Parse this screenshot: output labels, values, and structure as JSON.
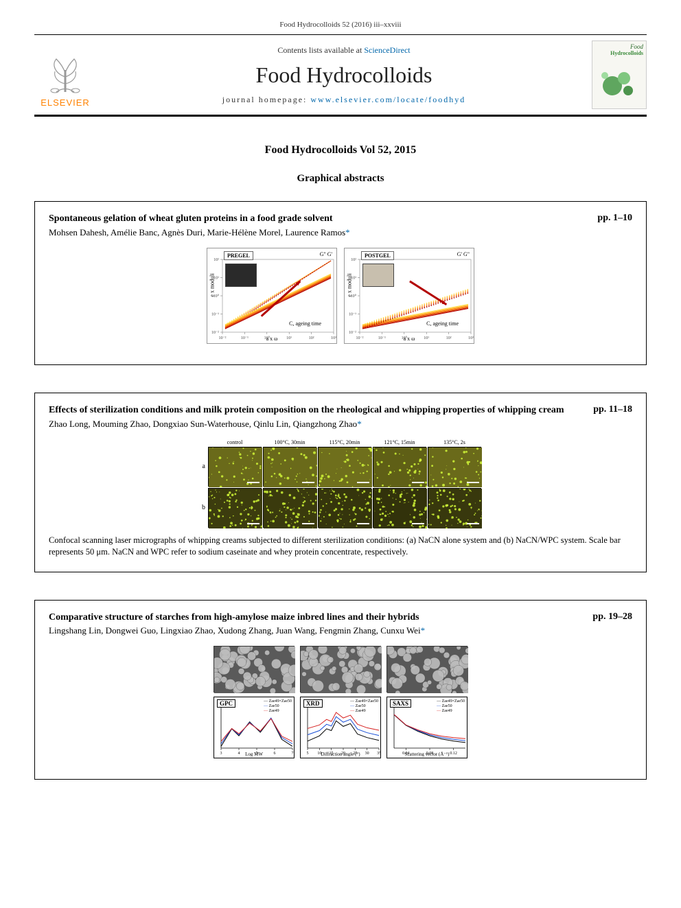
{
  "running_head": "Food Hydrocolloids 52 (2016) iii–xxviii",
  "masthead": {
    "publisher_name": "ELSEVIER",
    "publisher_color": "#ff8200",
    "contents_prefix": "Contents lists available at ",
    "contents_link_text": "ScienceDirect",
    "journal_title": "Food Hydrocolloids",
    "homepage_prefix": "journal homepage: ",
    "homepage_link_text": "www.elsevier.com/locate/foodhyd",
    "cover": {
      "line1": "Food",
      "line2": "Hydrocolloids"
    }
  },
  "page_heading": "Food Hydrocolloids Vol 52, 2015",
  "page_subheading": "Graphical abstracts",
  "link_color": "#0066aa",
  "abstracts": [
    {
      "title": "Spontaneous gelation of wheat gluten proteins in a food grade solvent",
      "authors": "Mohsen Dahesh, Amélie Banc, Agnès Duri, Marie-Hélène Morel, Laurence Ramos",
      "pages": "pp. 1–10",
      "graphic": {
        "type": "rheology-pair",
        "panels": [
          {
            "corner": "PREGEL",
            "ylab": "e x moduli",
            "xlab": "a x ω",
            "legend": "G\"  G'",
            "annot": "C, ageing time",
            "xticks": [
              "10⁻²",
              "10⁻¹",
              "10⁰",
              "10¹",
              "10²",
              "10³"
            ],
            "yticks": [
              "10⁻²",
              "10⁻¹",
              "10⁰",
              "10¹",
              "10²"
            ],
            "inset_bg": "#2a2a2a",
            "curves": [
              {
                "kind": "G'",
                "color_gradient": [
                  "#ffe24d",
                  "#ff7a00",
                  "#b30000"
                ],
                "dash": "dot",
                "slope": 1.9
              },
              {
                "kind": "G\"",
                "color_gradient": [
                  "#ffe24d",
                  "#ff7a00",
                  "#b30000"
                ],
                "dash": "solid",
                "slope": 1.0
              }
            ],
            "arrow": {
              "from": [
                0.35,
                0.78
              ],
              "to": [
                0.7,
                0.3
              ],
              "color": "#b30000"
            }
          },
          {
            "corner": "POSTGEL",
            "ylab": "e x moduli",
            "xlab": "a x ω",
            "legend": "G'  G\"",
            "annot": "C, ageing time",
            "xticks": [
              "10⁻²",
              "10⁻¹",
              "10⁰",
              "10¹",
              "10²",
              "10³"
            ],
            "yticks": [
              "10⁻²",
              "10⁻¹",
              "10⁰",
              "10¹",
              "10²"
            ],
            "inset_bg": "#c8bfae",
            "curves": [
              {
                "kind": "G'",
                "color_gradient": [
                  "#ffe24d",
                  "#ff7a00",
                  "#b30000"
                ],
                "dash": "solid",
                "slope": 0.4
              },
              {
                "kind": "G\"",
                "color_gradient": [
                  "#ffe24d",
                  "#ff7a00",
                  "#b30000"
                ],
                "dash": "dot",
                "slope": 0.7
              }
            ],
            "arrow": {
              "from": [
                0.45,
                0.3
              ],
              "to": [
                0.78,
                0.62
              ],
              "color": "#b30000"
            }
          }
        ]
      }
    },
    {
      "title": "Effects of sterilization conditions and milk protein composition on the rheological and whipping properties of whipping cream",
      "authors": "Zhao Long, Mouming Zhao, Dongxiao Sun-Waterhouse, Qinlu Lin, Qiangzhong Zhao",
      "pages": "pp. 11–18",
      "graphic": {
        "type": "micrograph-grid",
        "col_labels": [
          "control",
          "100°C, 30min",
          "115°C, 20min",
          "121°C, 15min",
          "135°C, 2s"
        ],
        "row_labels": [
          "a",
          "b"
        ],
        "cell_colors_row_a": [
          "#6a6a1a",
          "#6a6a1a",
          "#6f6f1c",
          "#5f5f16",
          "#6a6a1a"
        ],
        "cell_colors_row_b": [
          "#3c3c0e",
          "#3a3a0d",
          "#35350c",
          "#32320b",
          "#38380d"
        ],
        "speck_color": "#d7ff3a"
      },
      "caption": "Confocal scanning laser micrographs of whipping creams subjected to different sterilization conditions: (a) NaCN alone system and (b) NaCN/WPC system. Scale bar represents 50 μm. NaCN and WPC refer to sodium caseinate and whey protein concentrate, respectively."
    },
    {
      "title": "Comparative structure of starches from high-amylose maize inbred lines and their hybrids",
      "authors": "Lingshang Lin, Dongwei Guo, Lingxiao Zhao, Xudong Zhang, Juan Wang, Fengmin Zhang, Cunxu Wei",
      "pages": "pp. 19–28",
      "graphic": {
        "type": "starch-composite",
        "sem_colors": [
          "#5a5a5a",
          "#5f5f5f",
          "#585858"
        ],
        "spectra": [
          {
            "label": "GPC",
            "xlab": "Log MW",
            "xticks": [
              "3",
              "4",
              "5",
              "6",
              "7"
            ],
            "legend": [
              "Zae49×Zae50",
              "Zae50",
              "Zae49"
            ],
            "series_colors": [
              "#000000",
              "#1a4fd6",
              "#d62020"
            ],
            "series": [
              [
                [
                  3,
                  0.05
                ],
                [
                  3.6,
                  0.55
                ],
                [
                  4.0,
                  0.35
                ],
                [
                  4.6,
                  0.75
                ],
                [
                  5.2,
                  0.45
                ],
                [
                  5.8,
                  0.85
                ],
                [
                  6.4,
                  0.25
                ],
                [
                  7,
                  0.05
                ]
              ],
              [
                [
                  3,
                  0.04
                ],
                [
                  3.6,
                  0.48
                ],
                [
                  4.0,
                  0.3
                ],
                [
                  4.6,
                  0.65
                ],
                [
                  5.2,
                  0.4
                ],
                [
                  5.8,
                  0.78
                ],
                [
                  6.4,
                  0.22
                ],
                [
                  7,
                  0.04
                ]
              ],
              [
                [
                  3,
                  0.03
                ],
                [
                  3.6,
                  0.4
                ],
                [
                  4.0,
                  0.25
                ],
                [
                  4.6,
                  0.55
                ],
                [
                  5.2,
                  0.33
                ],
                [
                  5.8,
                  0.68
                ],
                [
                  6.4,
                  0.18
                ],
                [
                  7,
                  0.03
                ]
              ]
            ]
          },
          {
            "label": "XRD",
            "xlab": "Diffraction angle (°)",
            "xticks": [
              "5",
              "10",
              "15",
              "20",
              "25",
              "30",
              "35"
            ],
            "legend": [
              "Zae49×Zae50",
              "Zae50",
              "Zae49"
            ],
            "series_colors": [
              "#000000",
              "#1a4fd6",
              "#d62020"
            ],
            "series": [
              [
                [
                  5,
                  0.2
                ],
                [
                  10,
                  0.35
                ],
                [
                  13,
                  0.55
                ],
                [
                  15,
                  0.5
                ],
                [
                  17,
                  0.78
                ],
                [
                  20,
                  0.62
                ],
                [
                  23,
                  0.7
                ],
                [
                  26,
                  0.4
                ],
                [
                  30,
                  0.3
                ],
                [
                  35,
                  0.22
                ]
              ],
              [
                [
                  5,
                  0.3
                ],
                [
                  10,
                  0.42
                ],
                [
                  13,
                  0.6
                ],
                [
                  15,
                  0.55
                ],
                [
                  17,
                  0.82
                ],
                [
                  20,
                  0.66
                ],
                [
                  23,
                  0.74
                ],
                [
                  26,
                  0.46
                ],
                [
                  30,
                  0.36
                ],
                [
                  35,
                  0.28
                ]
              ],
              [
                [
                  5,
                  0.4
                ],
                [
                  10,
                  0.5
                ],
                [
                  13,
                  0.66
                ],
                [
                  15,
                  0.6
                ],
                [
                  17,
                  0.86
                ],
                [
                  20,
                  0.7
                ],
                [
                  23,
                  0.78
                ],
                [
                  26,
                  0.52
                ],
                [
                  30,
                  0.42
                ],
                [
                  35,
                  0.35
                ]
              ]
            ]
          },
          {
            "label": "SAXS",
            "xlab": "Scattering vector (Å⁻¹)",
            "xticks": [
              "0.04",
              "0.08",
              "0.12"
            ],
            "legend": [
              "Zae49×Zae50",
              "Zae50",
              "Zae49"
            ],
            "series_colors": [
              "#000000",
              "#1a4fd6",
              "#d62020"
            ],
            "series": [
              [
                [
                  0.02,
                  0.95
                ],
                [
                  0.04,
                  0.65
                ],
                [
                  0.06,
                  0.48
                ],
                [
                  0.08,
                  0.35
                ],
                [
                  0.1,
                  0.26
                ],
                [
                  0.12,
                  0.2
                ],
                [
                  0.14,
                  0.16
                ]
              ],
              [
                [
                  0.02,
                  0.88
                ],
                [
                  0.04,
                  0.58
                ],
                [
                  0.06,
                  0.42
                ],
                [
                  0.08,
                  0.3
                ],
                [
                  0.1,
                  0.22
                ],
                [
                  0.12,
                  0.17
                ],
                [
                  0.14,
                  0.13
                ]
              ],
              [
                [
                  0.02,
                  0.8
                ],
                [
                  0.04,
                  0.5
                ],
                [
                  0.06,
                  0.36
                ],
                [
                  0.08,
                  0.25
                ],
                [
                  0.1,
                  0.18
                ],
                [
                  0.12,
                  0.14
                ],
                [
                  0.14,
                  0.11
                ]
              ]
            ]
          }
        ]
      }
    }
  ]
}
